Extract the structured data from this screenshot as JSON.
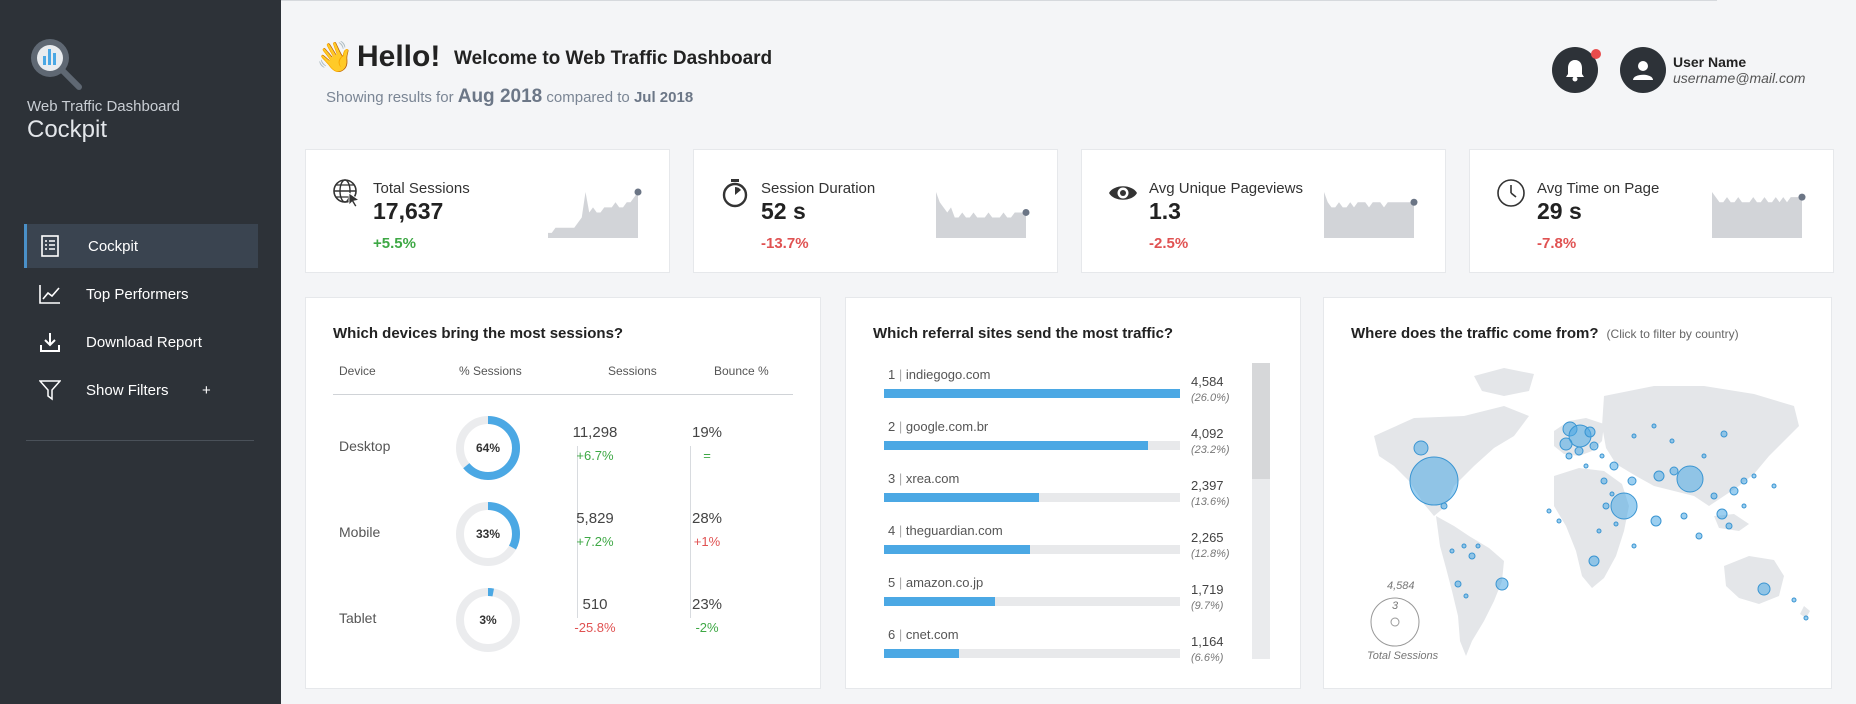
{
  "sidebar": {
    "brand_sub": "Web Traffic Dashboard",
    "brand_title": "Cockpit",
    "items": [
      {
        "label": "Cockpit",
        "icon": "list-icon",
        "active": true
      },
      {
        "label": "Top Performers",
        "icon": "trend-chart-icon"
      },
      {
        "label": "Download Report",
        "icon": "download-icon"
      },
      {
        "label": "Show Filters",
        "icon": "filter-icon",
        "suffix": "+"
      }
    ]
  },
  "header": {
    "hello": "Hello!",
    "welcome": "Welcome to Web Traffic Dashboard",
    "showing_prefix": "Showing results for",
    "current_period": "Aug 2018",
    "compared_to": "compared to",
    "previous_period": "Jul 2018"
  },
  "user": {
    "name": "User Name",
    "email": "username@mail.com",
    "has_notification": true
  },
  "kpis": [
    {
      "label": "Total Sessions",
      "value": "17,637",
      "delta": "+5.5%",
      "trend": "pos",
      "icon": "globe-cursor-icon",
      "spark": [
        1,
        1,
        2,
        2,
        2,
        2,
        2,
        2,
        3,
        4,
        9,
        5,
        6,
        5,
        5,
        6,
        6,
        6,
        7,
        6,
        6,
        7,
        7,
        8,
        9
      ]
    },
    {
      "label": "Session Duration",
      "value": "52 s",
      "delta": "-13.7%",
      "trend": "neg",
      "icon": "stopwatch-icon",
      "spark": [
        9,
        7,
        6,
        5,
        6,
        4,
        4,
        5,
        4,
        4,
        5,
        4,
        4,
        4,
        5,
        4,
        4,
        4,
        5,
        4,
        4,
        5,
        5,
        5,
        5
      ]
    },
    {
      "label": "Avg Unique Pageviews",
      "value": "1.3",
      "delta": "-2.5%",
      "trend": "neg",
      "icon": "eye-icon",
      "spark": [
        9,
        7,
        6,
        6,
        7,
        6,
        6,
        7,
        6,
        7,
        7,
        7,
        6,
        7,
        7,
        7,
        6,
        7,
        7,
        7,
        7,
        7,
        7,
        7,
        7
      ]
    },
    {
      "label": "Avg Time on Page",
      "value": "29 s",
      "delta": "-7.8%",
      "trend": "neg",
      "icon": "clock-icon",
      "spark": [
        9,
        8,
        7,
        7,
        8,
        7,
        7,
        8,
        7,
        7,
        7,
        8,
        7,
        7,
        8,
        7,
        7,
        8,
        7,
        8,
        7,
        8,
        8,
        8,
        8
      ]
    }
  ],
  "devices": {
    "title": "Which devices bring the most sessions?",
    "headers": [
      "Device",
      "% Sessions",
      "Sessions",
      "Bounce %"
    ],
    "rows": [
      {
        "name": "Desktop",
        "pct_label": "64%",
        "pct": 64,
        "sessions": "11,298",
        "sessions_delta": "+6.7%",
        "sessions_trend": "pos",
        "bounce": "19%",
        "bounce_delta": "=",
        "bounce_trend": "pos"
      },
      {
        "name": "Mobile",
        "pct_label": "33%",
        "pct": 33,
        "sessions": "5,829",
        "sessions_delta": "+7.2%",
        "sessions_trend": "pos",
        "bounce": "28%",
        "bounce_delta": "+1%",
        "bounce_trend": "neg"
      },
      {
        "name": "Tablet",
        "pct_label": "3%",
        "pct": 3,
        "sessions": "510",
        "sessions_delta": "-25.8%",
        "sessions_trend": "neg",
        "bounce": "23%",
        "bounce_delta": "-2%",
        "bounce_trend": "pos"
      }
    ]
  },
  "referrals": {
    "title": "Which referral sites send the most traffic?",
    "rows": [
      {
        "rank": "1",
        "site": "indiegogo.com",
        "value": "4,584",
        "pct": "(26.0%)",
        "share": 1.0
      },
      {
        "rank": "2",
        "site": "google.com.br",
        "value": "4,092",
        "pct": "(23.2%)",
        "share": 0.893
      },
      {
        "rank": "3",
        "site": "xrea.com",
        "value": "2,397",
        "pct": "(13.6%)",
        "share": 0.523
      },
      {
        "rank": "4",
        "site": "theguardian.com",
        "value": "2,265",
        "pct": "(12.8%)",
        "share": 0.494
      },
      {
        "rank": "5",
        "site": "amazon.co.jp",
        "value": "1,719",
        "pct": "(9.7%)",
        "share": 0.375
      },
      {
        "rank": "6",
        "site": "cnet.com",
        "value": "1,164",
        "pct": "(6.6%)",
        "share": 0.254
      }
    ]
  },
  "map": {
    "title": "Where does the traffic come from?",
    "hint": "(Click to filter by country)",
    "legend_max": "4,584",
    "legend_min": "3",
    "legend_label": "Total Sessions"
  },
  "colors": {
    "accent": "#4ba8e4",
    "positive": "#3ea845",
    "negative": "#e05252",
    "sidebar": "#2d3238"
  }
}
